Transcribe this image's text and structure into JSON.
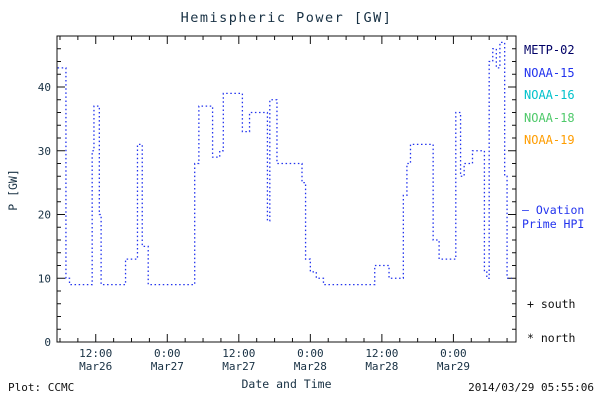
{
  "footer": {
    "plot_credit": "Plot: CCMC",
    "timestamp": "2014/03/29 05:55:06"
  },
  "legend": {
    "satellites": [
      {
        "label": "METP-02",
        "color": "#000066"
      },
      {
        "label": "NOAA-15",
        "color": "#2233ee"
      },
      {
        "label": "NOAA-16",
        "color": "#00c2cc"
      },
      {
        "label": "NOAA-18",
        "color": "#4ec96a"
      },
      {
        "label": "NOAA-19",
        "color": "#ff9d00"
      }
    ],
    "model_line1": "– Ovation",
    "model_line2": "Prime HPI",
    "model_color": "#2233ee",
    "south_marker": "+ south",
    "north_marker": "* north"
  },
  "chart_data": {
    "type": "line",
    "title": "Hemispheric Power [GW]",
    "xlabel": "Date and Time",
    "ylabel": "P [GW]",
    "series_label": "Ovation Prime HPI",
    "legend_entries": [
      "METP-02",
      "NOAA-15",
      "NOAA-16",
      "NOAA-18",
      "NOAA-19",
      "Ovation Prime HPI",
      "+ south",
      "* north"
    ],
    "line_color": "#2233ee",
    "line_style": "dotted",
    "step": true,
    "grid": false,
    "xlim_hours": [
      5.5,
      82.5
    ],
    "ylim": [
      0,
      48
    ],
    "yticks": [
      0,
      10,
      20,
      30,
      40
    ],
    "y_minor_step": 2,
    "x_minor_step_hours": 3,
    "xticks": [
      {
        "hour": 12,
        "time": "12:00",
        "date": "Mar26"
      },
      {
        "hour": 24,
        "time": "0:00",
        "date": "Mar27"
      },
      {
        "hour": 36,
        "time": "12:00",
        "date": "Mar27"
      },
      {
        "hour": 48,
        "time": "0:00",
        "date": "Mar28"
      },
      {
        "hour": 60,
        "time": "12:00",
        "date": "Mar28"
      },
      {
        "hour": 72,
        "time": "0:00",
        "date": "Mar29"
      }
    ],
    "points_format": "[hours since Mar26 00:00 UT, hemispheric power GW]",
    "points": [
      [
        5.6,
        43
      ],
      [
        7.0,
        10
      ],
      [
        7.6,
        9
      ],
      [
        11.4,
        30
      ],
      [
        11.7,
        37
      ],
      [
        12.6,
        20
      ],
      [
        12.9,
        9
      ],
      [
        17.0,
        13
      ],
      [
        19.0,
        31
      ],
      [
        19.8,
        15
      ],
      [
        20.8,
        9
      ],
      [
        28.6,
        28
      ],
      [
        29.3,
        37
      ],
      [
        31.6,
        29
      ],
      [
        32.8,
        30
      ],
      [
        33.4,
        39
      ],
      [
        36.6,
        33
      ],
      [
        37.8,
        36
      ],
      [
        40.8,
        19
      ],
      [
        41.2,
        38
      ],
      [
        42.4,
        28
      ],
      [
        46.6,
        25
      ],
      [
        47.2,
        13
      ],
      [
        48.0,
        11
      ],
      [
        49.0,
        10
      ],
      [
        50.2,
        9
      ],
      [
        58.8,
        12
      ],
      [
        61.2,
        10
      ],
      [
        63.6,
        23
      ],
      [
        64.2,
        28
      ],
      [
        64.8,
        31
      ],
      [
        68.6,
        16
      ],
      [
        69.6,
        13
      ],
      [
        72.4,
        36
      ],
      [
        73.2,
        26
      ],
      [
        73.8,
        28
      ],
      [
        75.2,
        30
      ],
      [
        77.2,
        11
      ],
      [
        77.6,
        10
      ],
      [
        78.0,
        44
      ],
      [
        78.6,
        46
      ],
      [
        79.2,
        43
      ],
      [
        79.8,
        47
      ],
      [
        80.6,
        26
      ],
      [
        81.0,
        10
      ],
      [
        81.8,
        10
      ]
    ]
  }
}
